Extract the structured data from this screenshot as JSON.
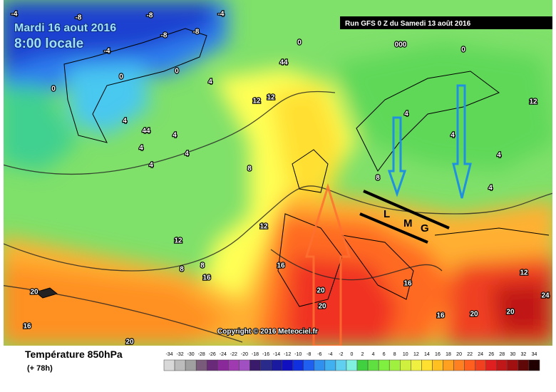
{
  "header": {
    "date": "Mardi 16 aout 2016",
    "time": "8:00 locale",
    "run": "Run GFS 0 Z du Samedi 13 août 2016"
  },
  "copyright": "Copyright © 2016 Meteociel.fr",
  "footer": {
    "title": "Température 850hPa",
    "lead": "(+ 78h)"
  },
  "scale": {
    "ticks": [
      -34,
      -32,
      -30,
      -28,
      -26,
      -24,
      -22,
      -20,
      -18,
      -16,
      -14,
      -12,
      -10,
      -8,
      -6,
      -4,
      -2,
      0,
      2,
      4,
      6,
      8,
      10,
      12,
      14,
      16,
      18,
      20,
      22,
      24,
      26,
      28,
      30,
      32,
      34
    ]
  },
  "annotations": {
    "letters": [
      "L",
      "M",
      "G"
    ]
  },
  "contour_labels": [
    "-4",
    "-8",
    "-8",
    "-8",
    "-8",
    "-4",
    "-4",
    "0",
    "0",
    "0",
    "4",
    "4",
    "4",
    "44",
    "4",
    "44",
    "4",
    "4",
    "12",
    "12",
    "12",
    "8",
    "8",
    "12",
    "16",
    "16",
    "20",
    "20",
    "20",
    "16",
    "16",
    "12",
    "20",
    "24",
    "0",
    "000",
    "0",
    "4",
    "4",
    "4",
    "12",
    "4",
    "8",
    "8",
    "16",
    "20",
    "20"
  ]
}
